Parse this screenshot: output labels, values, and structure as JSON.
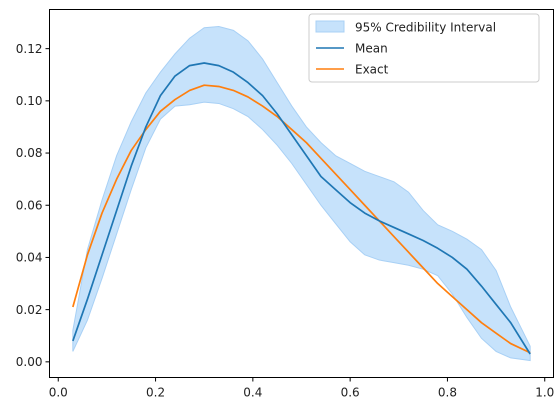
{
  "chart_data": {
    "type": "line",
    "title": "",
    "xlabel": "",
    "ylabel": "",
    "xlim": [
      -0.018,
      1.018
    ],
    "ylim": [
      -0.006,
      0.135
    ],
    "grid": false,
    "legend_placement": "top-right",
    "xticks": [
      0.0,
      0.2,
      0.4,
      0.6,
      0.8,
      1.0
    ],
    "xtick_labels": [
      "0.0",
      "0.2",
      "0.4",
      "0.6",
      "0.8",
      "1.0"
    ],
    "yticks": [
      0.0,
      0.02,
      0.04,
      0.06,
      0.08,
      0.1,
      0.12
    ],
    "ytick_labels": [
      "0.00",
      "0.02",
      "0.04",
      "0.06",
      "0.08",
      "0.10",
      "0.12"
    ],
    "band": {
      "name": "95% Credibility Interval",
      "color": "#c6e2fb",
      "edge_color": "#a8d0f5",
      "x": [
        0.03,
        0.06,
        0.09,
        0.12,
        0.15,
        0.18,
        0.21,
        0.24,
        0.27,
        0.3,
        0.33,
        0.36,
        0.39,
        0.42,
        0.45,
        0.48,
        0.51,
        0.54,
        0.57,
        0.6,
        0.63,
        0.66,
        0.69,
        0.72,
        0.75,
        0.78,
        0.81,
        0.84,
        0.87,
        0.9,
        0.93,
        0.97
      ],
      "lower": [
        0.004,
        0.016,
        0.032,
        0.049,
        0.066,
        0.082,
        0.093,
        0.098,
        0.0985,
        0.0995,
        0.099,
        0.097,
        0.094,
        0.089,
        0.083,
        0.076,
        0.068,
        0.06,
        0.053,
        0.046,
        0.041,
        0.039,
        0.038,
        0.037,
        0.0355,
        0.033,
        0.026,
        0.017,
        0.009,
        0.004,
        0.0015,
        0.0005
      ],
      "upper": [
        0.012,
        0.043,
        0.062,
        0.079,
        0.092,
        0.103,
        0.111,
        0.118,
        0.124,
        0.128,
        0.1285,
        0.127,
        0.123,
        0.116,
        0.107,
        0.098,
        0.09,
        0.084,
        0.079,
        0.076,
        0.073,
        0.071,
        0.069,
        0.065,
        0.058,
        0.0525,
        0.05,
        0.047,
        0.043,
        0.035,
        0.021,
        0.006
      ]
    },
    "series": [
      {
        "name": "Mean",
        "color": "#1f77b4",
        "x": [
          0.03,
          0.06,
          0.09,
          0.12,
          0.15,
          0.18,
          0.21,
          0.24,
          0.27,
          0.3,
          0.33,
          0.36,
          0.39,
          0.42,
          0.45,
          0.48,
          0.51,
          0.54,
          0.57,
          0.6,
          0.63,
          0.66,
          0.69,
          0.72,
          0.75,
          0.78,
          0.81,
          0.84,
          0.87,
          0.9,
          0.93,
          0.97
        ],
        "values": [
          0.008,
          0.024,
          0.041,
          0.058,
          0.075,
          0.09,
          0.102,
          0.1095,
          0.1135,
          0.1145,
          0.1135,
          0.111,
          0.107,
          0.102,
          0.095,
          0.087,
          0.079,
          0.071,
          0.066,
          0.061,
          0.057,
          0.054,
          0.0515,
          0.049,
          0.0465,
          0.0435,
          0.04,
          0.0355,
          0.029,
          0.022,
          0.015,
          0.003
        ]
      },
      {
        "name": "Exact",
        "color": "#ff7f0e",
        "x": [
          0.03,
          0.06,
          0.09,
          0.12,
          0.15,
          0.18,
          0.21,
          0.24,
          0.27,
          0.3,
          0.33,
          0.36,
          0.39,
          0.42,
          0.45,
          0.48,
          0.51,
          0.54,
          0.57,
          0.6,
          0.63,
          0.66,
          0.69,
          0.72,
          0.75,
          0.78,
          0.81,
          0.84,
          0.87,
          0.9,
          0.93,
          0.97
        ],
        "values": [
          0.021,
          0.041,
          0.057,
          0.07,
          0.081,
          0.089,
          0.096,
          0.1005,
          0.104,
          0.106,
          0.1055,
          0.104,
          0.1015,
          0.098,
          0.094,
          0.089,
          0.084,
          0.078,
          0.072,
          0.066,
          0.06,
          0.054,
          0.048,
          0.042,
          0.036,
          0.03,
          0.025,
          0.02,
          0.015,
          0.011,
          0.007,
          0.0035
        ]
      }
    ],
    "legend": [
      {
        "label": "95% Credibility Interval",
        "kind": "patch"
      },
      {
        "label": "Mean",
        "kind": "line"
      },
      {
        "label": "Exact",
        "kind": "line"
      }
    ]
  }
}
